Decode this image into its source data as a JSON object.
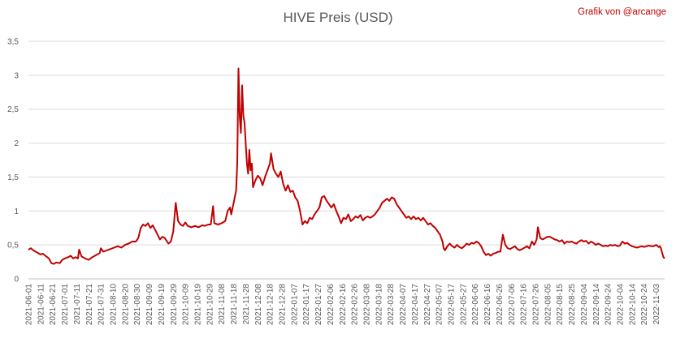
{
  "chart_data": {
    "type": "line",
    "title": "HIVE Preis (USD)",
    "credit": "Grafik von @arcange",
    "line_color": "#c00000",
    "grid": true,
    "ylim": [
      0,
      3.5
    ],
    "yticks": [
      0,
      0.5,
      1,
      1.5,
      2,
      2.5,
      3,
      3.5
    ],
    "ytick_labels": [
      "0",
      "0,5",
      "1",
      "1,5",
      "2",
      "2,5",
      "3",
      "3,5"
    ],
    "xlim": [
      "2021-06-01",
      "2022-11-10"
    ],
    "xticks": [
      "2021-06-01",
      "2021-06-11",
      "2021-06-21",
      "2021-07-01",
      "2021-07-11",
      "2021-07-21",
      "2021-07-31",
      "2021-08-10",
      "2021-08-20",
      "2021-08-30",
      "2021-09-09",
      "2021-09-19",
      "2021-09-29",
      "2021-10-09",
      "2021-10-19",
      "2021-10-29",
      "2021-11-08",
      "2021-11-18",
      "2021-11-28",
      "2021-12-08",
      "2021-12-18",
      "2021-12-28",
      "2022-01-07",
      "2022-01-17",
      "2022-01-27",
      "2022-02-06",
      "2022-02-16",
      "2022-02-26",
      "2022-03-08",
      "2022-03-18",
      "2022-03-28",
      "2022-04-07",
      "2022-04-17",
      "2022-04-27",
      "2022-05-07",
      "2022-05-17",
      "2022-05-27",
      "2022-06-06",
      "2022-06-16",
      "2022-06-26",
      "2022-07-06",
      "2022-07-16",
      "2022-07-26",
      "2022-08-05",
      "2022-08-15",
      "2022-08-25",
      "2022-09-04",
      "2022-09-14",
      "2022-09-24",
      "2022-10-04",
      "2022-10-14",
      "2022-10-24",
      "2022-11-03"
    ],
    "series": [
      {
        "name": "",
        "points": [
          [
            "2021-06-01",
            0.43
          ],
          [
            "2021-06-03",
            0.45
          ],
          [
            "2021-06-05",
            0.42
          ],
          [
            "2021-06-07",
            0.4
          ],
          [
            "2021-06-09",
            0.38
          ],
          [
            "2021-06-11",
            0.36
          ],
          [
            "2021-06-13",
            0.37
          ],
          [
            "2021-06-15",
            0.34
          ],
          [
            "2021-06-18",
            0.3
          ],
          [
            "2021-06-20",
            0.23
          ],
          [
            "2021-06-22",
            0.22
          ],
          [
            "2021-06-24",
            0.24
          ],
          [
            "2021-06-27",
            0.23
          ],
          [
            "2021-06-29",
            0.28
          ],
          [
            "2021-07-01",
            0.3
          ],
          [
            "2021-07-04",
            0.32
          ],
          [
            "2021-07-06",
            0.34
          ],
          [
            "2021-07-08",
            0.3
          ],
          [
            "2021-07-10",
            0.32
          ],
          [
            "2021-07-12",
            0.3
          ],
          [
            "2021-07-13",
            0.43
          ],
          [
            "2021-07-15",
            0.33
          ],
          [
            "2021-07-18",
            0.3
          ],
          [
            "2021-07-21",
            0.28
          ],
          [
            "2021-07-24",
            0.32
          ],
          [
            "2021-07-27",
            0.35
          ],
          [
            "2021-07-30",
            0.38
          ],
          [
            "2021-07-31",
            0.45
          ],
          [
            "2021-08-02",
            0.4
          ],
          [
            "2021-08-05",
            0.42
          ],
          [
            "2021-08-08",
            0.44
          ],
          [
            "2021-08-11",
            0.46
          ],
          [
            "2021-08-14",
            0.48
          ],
          [
            "2021-08-17",
            0.46
          ],
          [
            "2021-08-20",
            0.5
          ],
          [
            "2021-08-23",
            0.52
          ],
          [
            "2021-08-26",
            0.55
          ],
          [
            "2021-08-29",
            0.55
          ],
          [
            "2021-08-31",
            0.6
          ],
          [
            "2021-09-02",
            0.75
          ],
          [
            "2021-09-04",
            0.8
          ],
          [
            "2021-09-06",
            0.78
          ],
          [
            "2021-09-08",
            0.82
          ],
          [
            "2021-09-10",
            0.75
          ],
          [
            "2021-09-12",
            0.79
          ],
          [
            "2021-09-14",
            0.72
          ],
          [
            "2021-09-16",
            0.65
          ],
          [
            "2021-09-18",
            0.58
          ],
          [
            "2021-09-20",
            0.62
          ],
          [
            "2021-09-22",
            0.6
          ],
          [
            "2021-09-25",
            0.52
          ],
          [
            "2021-09-27",
            0.55
          ],
          [
            "2021-09-29",
            0.7
          ],
          [
            "2021-10-01",
            1.12
          ],
          [
            "2021-10-03",
            0.85
          ],
          [
            "2021-10-05",
            0.8
          ],
          [
            "2021-10-07",
            0.78
          ],
          [
            "2021-10-09",
            0.83
          ],
          [
            "2021-10-11",
            0.78
          ],
          [
            "2021-10-14",
            0.76
          ],
          [
            "2021-10-17",
            0.78
          ],
          [
            "2021-10-20",
            0.76
          ],
          [
            "2021-10-23",
            0.79
          ],
          [
            "2021-10-25",
            0.78
          ],
          [
            "2021-10-28",
            0.8
          ],
          [
            "2021-10-30",
            0.8
          ],
          [
            "2021-11-01",
            1.07
          ],
          [
            "2021-11-02",
            0.82
          ],
          [
            "2021-11-05",
            0.8
          ],
          [
            "2021-11-08",
            0.82
          ],
          [
            "2021-11-11",
            0.85
          ],
          [
            "2021-11-13",
            1.0
          ],
          [
            "2021-11-15",
            1.05
          ],
          [
            "2021-11-16",
            0.95
          ],
          [
            "2021-11-18",
            1.12
          ],
          [
            "2021-11-20",
            1.3
          ],
          [
            "2021-11-21",
            1.7
          ],
          [
            "2021-11-22",
            3.1
          ],
          [
            "2021-11-23",
            2.4
          ],
          [
            "2021-11-24",
            2.15
          ],
          [
            "2021-11-25",
            2.85
          ],
          [
            "2021-11-26",
            2.4
          ],
          [
            "2021-11-27",
            2.3
          ],
          [
            "2021-11-28",
            2.0
          ],
          [
            "2021-11-29",
            1.7
          ],
          [
            "2021-11-30",
            1.55
          ],
          [
            "2021-12-01",
            1.9
          ],
          [
            "2021-12-02",
            1.6
          ],
          [
            "2021-12-03",
            1.7
          ],
          [
            "2021-12-04",
            1.35
          ],
          [
            "2021-12-06",
            1.45
          ],
          [
            "2021-12-08",
            1.52
          ],
          [
            "2021-12-10",
            1.48
          ],
          [
            "2021-12-12",
            1.38
          ],
          [
            "2021-12-14",
            1.5
          ],
          [
            "2021-12-16",
            1.6
          ],
          [
            "2021-12-18",
            1.7
          ],
          [
            "2021-12-19",
            1.85
          ],
          [
            "2021-12-21",
            1.62
          ],
          [
            "2021-12-23",
            1.55
          ],
          [
            "2021-12-25",
            1.5
          ],
          [
            "2021-12-27",
            1.58
          ],
          [
            "2021-12-29",
            1.4
          ],
          [
            "2021-12-31",
            1.3
          ],
          [
            "2022-01-02",
            1.38
          ],
          [
            "2022-01-04",
            1.28
          ],
          [
            "2022-01-06",
            1.3
          ],
          [
            "2022-01-08",
            1.2
          ],
          [
            "2022-01-10",
            1.15
          ],
          [
            "2022-01-12",
            1.0
          ],
          [
            "2022-01-14",
            0.8
          ],
          [
            "2022-01-16",
            0.85
          ],
          [
            "2022-01-18",
            0.82
          ],
          [
            "2022-01-20",
            0.9
          ],
          [
            "2022-01-22",
            0.88
          ],
          [
            "2022-01-24",
            0.95
          ],
          [
            "2022-01-26",
            1.0
          ],
          [
            "2022-01-28",
            1.05
          ],
          [
            "2022-01-30",
            1.2
          ],
          [
            "2022-02-01",
            1.22
          ],
          [
            "2022-02-03",
            1.15
          ],
          [
            "2022-02-05",
            1.1
          ],
          [
            "2022-02-07",
            1.05
          ],
          [
            "2022-02-09",
            1.1
          ],
          [
            "2022-02-11",
            1.0
          ],
          [
            "2022-02-13",
            0.92
          ],
          [
            "2022-02-15",
            0.82
          ],
          [
            "2022-02-17",
            0.9
          ],
          [
            "2022-02-19",
            0.88
          ],
          [
            "2022-02-21",
            0.95
          ],
          [
            "2022-02-23",
            0.85
          ],
          [
            "2022-02-25",
            0.88
          ],
          [
            "2022-02-27",
            0.92
          ],
          [
            "2022-03-01",
            0.9
          ],
          [
            "2022-03-03",
            0.94
          ],
          [
            "2022-03-05",
            0.86
          ],
          [
            "2022-03-07",
            0.9
          ],
          [
            "2022-03-09",
            0.92
          ],
          [
            "2022-03-11",
            0.9
          ],
          [
            "2022-03-13",
            0.92
          ],
          [
            "2022-03-15",
            0.95
          ],
          [
            "2022-03-17",
            1.0
          ],
          [
            "2022-03-19",
            1.05
          ],
          [
            "2022-03-21",
            1.12
          ],
          [
            "2022-03-23",
            1.15
          ],
          [
            "2022-03-25",
            1.18
          ],
          [
            "2022-03-27",
            1.15
          ],
          [
            "2022-03-29",
            1.2
          ],
          [
            "2022-03-31",
            1.18
          ],
          [
            "2022-04-02",
            1.1
          ],
          [
            "2022-04-04",
            1.05
          ],
          [
            "2022-04-06",
            1.0
          ],
          [
            "2022-04-08",
            0.95
          ],
          [
            "2022-04-10",
            0.9
          ],
          [
            "2022-04-12",
            0.92
          ],
          [
            "2022-04-14",
            0.88
          ],
          [
            "2022-04-16",
            0.92
          ],
          [
            "2022-04-18",
            0.88
          ],
          [
            "2022-04-20",
            0.9
          ],
          [
            "2022-04-22",
            0.86
          ],
          [
            "2022-04-24",
            0.9
          ],
          [
            "2022-04-26",
            0.85
          ],
          [
            "2022-04-28",
            0.8
          ],
          [
            "2022-04-30",
            0.82
          ],
          [
            "2022-05-02",
            0.78
          ],
          [
            "2022-05-04",
            0.75
          ],
          [
            "2022-05-06",
            0.7
          ],
          [
            "2022-05-08",
            0.65
          ],
          [
            "2022-05-10",
            0.55
          ],
          [
            "2022-05-11",
            0.45
          ],
          [
            "2022-05-12",
            0.42
          ],
          [
            "2022-05-14",
            0.48
          ],
          [
            "2022-05-16",
            0.52
          ],
          [
            "2022-05-18",
            0.48
          ],
          [
            "2022-05-20",
            0.46
          ],
          [
            "2022-05-22",
            0.5
          ],
          [
            "2022-05-24",
            0.47
          ],
          [
            "2022-05-26",
            0.45
          ],
          [
            "2022-05-28",
            0.48
          ],
          [
            "2022-05-30",
            0.52
          ],
          [
            "2022-06-01",
            0.5
          ],
          [
            "2022-06-03",
            0.53
          ],
          [
            "2022-06-05",
            0.52
          ],
          [
            "2022-06-07",
            0.55
          ],
          [
            "2022-06-09",
            0.53
          ],
          [
            "2022-06-11",
            0.48
          ],
          [
            "2022-06-13",
            0.4
          ],
          [
            "2022-06-15",
            0.35
          ],
          [
            "2022-06-17",
            0.37
          ],
          [
            "2022-06-19",
            0.34
          ],
          [
            "2022-06-21",
            0.37
          ],
          [
            "2022-06-23",
            0.38
          ],
          [
            "2022-06-25",
            0.4
          ],
          [
            "2022-06-27",
            0.4
          ],
          [
            "2022-06-29",
            0.65
          ],
          [
            "2022-07-01",
            0.5
          ],
          [
            "2022-07-03",
            0.45
          ],
          [
            "2022-07-05",
            0.44
          ],
          [
            "2022-07-07",
            0.46
          ],
          [
            "2022-07-09",
            0.48
          ],
          [
            "2022-07-11",
            0.44
          ],
          [
            "2022-07-13",
            0.42
          ],
          [
            "2022-07-15",
            0.44
          ],
          [
            "2022-07-17",
            0.46
          ],
          [
            "2022-07-19",
            0.48
          ],
          [
            "2022-07-21",
            0.45
          ],
          [
            "2022-07-23",
            0.55
          ],
          [
            "2022-07-25",
            0.5
          ],
          [
            "2022-07-27",
            0.58
          ],
          [
            "2022-07-28",
            0.76
          ],
          [
            "2022-07-30",
            0.6
          ],
          [
            "2022-08-01",
            0.58
          ],
          [
            "2022-08-03",
            0.6
          ],
          [
            "2022-08-05",
            0.62
          ],
          [
            "2022-08-07",
            0.62
          ],
          [
            "2022-08-09",
            0.6
          ],
          [
            "2022-08-11",
            0.58
          ],
          [
            "2022-08-13",
            0.57
          ],
          [
            "2022-08-15",
            0.55
          ],
          [
            "2022-08-17",
            0.57
          ],
          [
            "2022-08-19",
            0.52
          ],
          [
            "2022-08-21",
            0.55
          ],
          [
            "2022-08-23",
            0.54
          ],
          [
            "2022-08-25",
            0.55
          ],
          [
            "2022-08-27",
            0.53
          ],
          [
            "2022-08-29",
            0.52
          ],
          [
            "2022-08-31",
            0.55
          ],
          [
            "2022-09-02",
            0.57
          ],
          [
            "2022-09-04",
            0.55
          ],
          [
            "2022-09-06",
            0.56
          ],
          [
            "2022-09-08",
            0.52
          ],
          [
            "2022-09-10",
            0.55
          ],
          [
            "2022-09-12",
            0.53
          ],
          [
            "2022-09-14",
            0.5
          ],
          [
            "2022-09-16",
            0.52
          ],
          [
            "2022-09-18",
            0.5
          ],
          [
            "2022-09-20",
            0.48
          ],
          [
            "2022-09-22",
            0.49
          ],
          [
            "2022-09-24",
            0.48
          ],
          [
            "2022-09-26",
            0.5
          ],
          [
            "2022-09-28",
            0.49
          ],
          [
            "2022-09-30",
            0.5
          ],
          [
            "2022-10-02",
            0.48
          ],
          [
            "2022-10-04",
            0.49
          ],
          [
            "2022-10-06",
            0.55
          ],
          [
            "2022-10-08",
            0.52
          ],
          [
            "2022-10-10",
            0.53
          ],
          [
            "2022-10-12",
            0.5
          ],
          [
            "2022-10-14",
            0.48
          ],
          [
            "2022-10-16",
            0.47
          ],
          [
            "2022-10-18",
            0.46
          ],
          [
            "2022-10-20",
            0.47
          ],
          [
            "2022-10-22",
            0.48
          ],
          [
            "2022-10-24",
            0.47
          ],
          [
            "2022-10-26",
            0.48
          ],
          [
            "2022-10-28",
            0.49
          ],
          [
            "2022-10-30",
            0.48
          ],
          [
            "2022-11-01",
            0.48
          ],
          [
            "2022-11-03",
            0.5
          ],
          [
            "2022-11-05",
            0.47
          ],
          [
            "2022-11-06",
            0.48
          ],
          [
            "2022-11-07",
            0.45
          ],
          [
            "2022-11-08",
            0.38
          ],
          [
            "2022-11-09",
            0.32
          ],
          [
            "2022-11-10",
            0.3
          ]
        ]
      }
    ]
  }
}
